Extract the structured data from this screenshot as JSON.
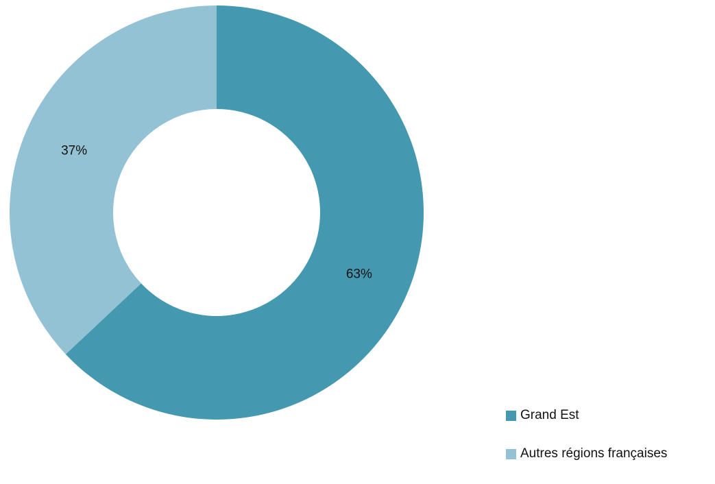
{
  "chart_data": {
    "type": "pie",
    "title": "",
    "categories": [
      "Grand Est",
      "Autres régions françaises"
    ],
    "values": [
      63,
      37
    ],
    "labels": [
      "63%",
      "37%"
    ],
    "colors": [
      "#4499b0",
      "#93c2d4"
    ],
    "legend_position": "bottom-right",
    "style": "donut"
  }
}
